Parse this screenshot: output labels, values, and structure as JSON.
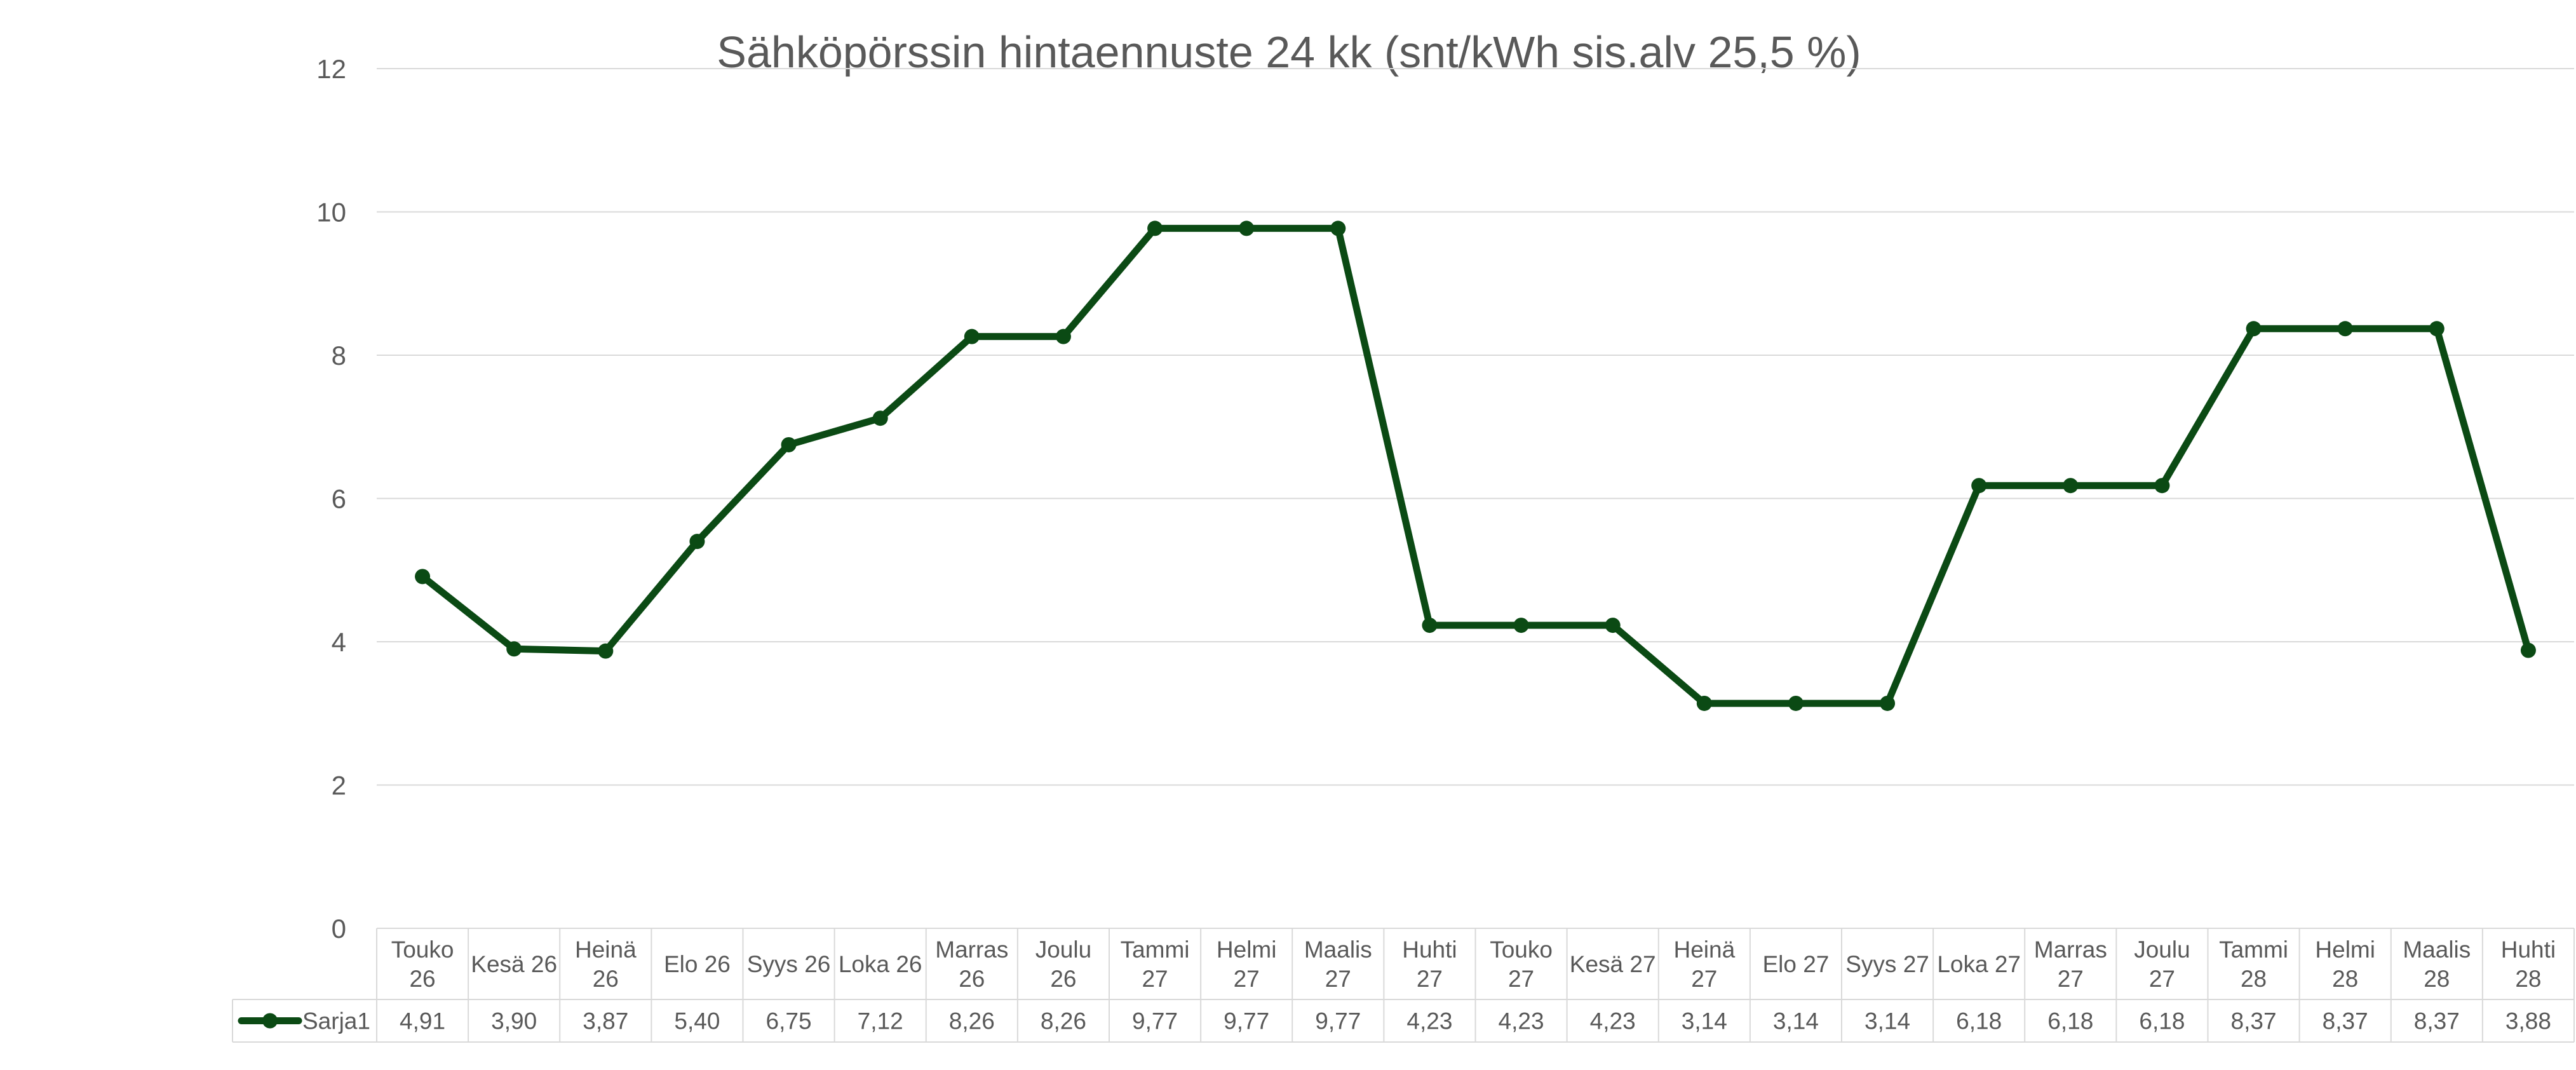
{
  "chart_data": {
    "type": "line",
    "title": "Sähköpörssin hintaennuste 24 kk (snt/kWh sis.alv 25,5 %)",
    "xlabel": "",
    "ylabel": "",
    "ylim": [
      0,
      12
    ],
    "y_ticks": [
      "0",
      "2",
      "4",
      "6",
      "8",
      "10",
      "12"
    ],
    "grid": true,
    "legend_placement": "data-table",
    "categories": [
      [
        "Touko",
        "26"
      ],
      [
        "Kesä 26"
      ],
      [
        "Heinä",
        "26"
      ],
      [
        "Elo 26"
      ],
      [
        "Syys 26"
      ],
      [
        "Loka 26"
      ],
      [
        "Marras",
        "26"
      ],
      [
        "Joulu",
        "26"
      ],
      [
        "Tammi",
        "27"
      ],
      [
        "Helmi",
        "27"
      ],
      [
        "Maalis",
        "27"
      ],
      [
        "Huhti",
        "27"
      ],
      [
        "Touko",
        "27"
      ],
      [
        "Kesä 27"
      ],
      [
        "Heinä",
        "27"
      ],
      [
        "Elo 27"
      ],
      [
        "Syys 27"
      ],
      [
        "Loka 27"
      ],
      [
        "Marras",
        "27"
      ],
      [
        "Joulu",
        "27"
      ],
      [
        "Tammi",
        "28"
      ],
      [
        "Helmi",
        "28"
      ],
      [
        "Maalis",
        "28"
      ],
      [
        "Huhti",
        "28"
      ]
    ],
    "series": [
      {
        "name": "Sarja1",
        "color": "#0b4a14",
        "values": [
          4.91,
          3.9,
          3.87,
          5.4,
          6.75,
          7.12,
          8.26,
          8.26,
          9.77,
          9.77,
          9.77,
          4.23,
          4.23,
          4.23,
          3.14,
          3.14,
          3.14,
          6.18,
          6.18,
          6.18,
          8.37,
          8.37,
          8.37,
          3.88
        ],
        "labels": [
          "4,91",
          "3,90",
          "3,87",
          "5,40",
          "6,75",
          "7,12",
          "8,26",
          "8,26",
          "9,77",
          "9,77",
          "9,77",
          "4,23",
          "4,23",
          "4,23",
          "3,14",
          "3,14",
          "3,14",
          "6,18",
          "6,18",
          "6,18",
          "8,37",
          "8,37",
          "8,37",
          "3,88"
        ]
      }
    ]
  },
  "colors": {
    "series": "#0b4a14",
    "grid": "#d9d9d9",
    "text": "#595959",
    "table_border": "#d9d9d9"
  }
}
